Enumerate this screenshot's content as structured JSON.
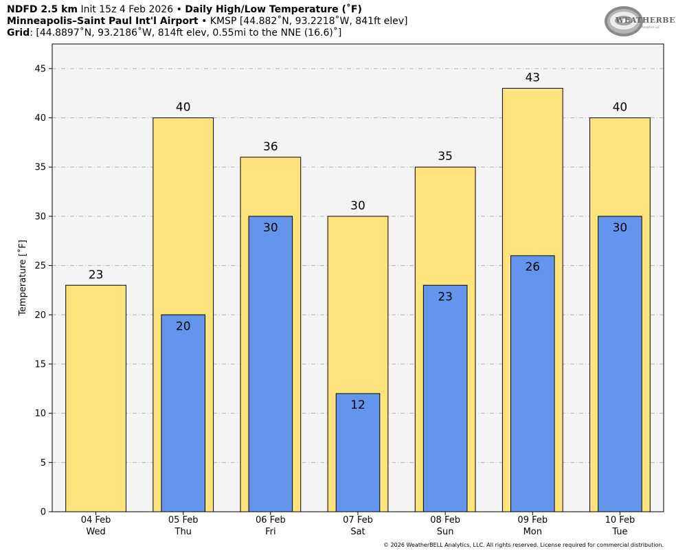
{
  "header": {
    "line1_model": "NDFD 2.5 km",
    "line1_init": "Init 15z 4 Feb 2026",
    "line1_bullet": "•",
    "line1_product": "Daily High/Low Temperature (˚F)",
    "line2_station": "Minneapolis–Saint Paul Int'l Airport",
    "line2_bullet": "•",
    "line2_details": "KMSP [44.882˚N, 93.2218˚W, 841ft elev]",
    "line3_label": "Grid",
    "line3_details": ": [44.8897˚N, 93.2186˚W, 814ft elev, 0.55mi to the NNE (16.6)˚]"
  },
  "logo": {
    "text": "WEATHERBELL",
    "sub": "Analytics LLC"
  },
  "copyright": "© 2026 WeatherBELL Analytics, LLC. All rights reserved. License required for commercial distribution.",
  "colors": {
    "high": "#FFE47E",
    "low": "#6495ED",
    "plot_bg": "#F4F4F4",
    "grid": "#B4B4B4"
  },
  "chart_data": {
    "type": "bar",
    "title": "Daily High/Low Temperature (˚F)",
    "ylabel": "Temperature [˚F]",
    "ylim": [
      0,
      47.5
    ],
    "yticks": [
      0,
      5,
      10,
      15,
      20,
      25,
      30,
      35,
      40,
      45
    ],
    "grid": true,
    "categories": [
      {
        "date": "04 Feb",
        "day": "Wed"
      },
      {
        "date": "05 Feb",
        "day": "Thu"
      },
      {
        "date": "06 Feb",
        "day": "Fri"
      },
      {
        "date": "07 Feb",
        "day": "Sat"
      },
      {
        "date": "08 Feb",
        "day": "Sun"
      },
      {
        "date": "09 Feb",
        "day": "Mon"
      },
      {
        "date": "10 Feb",
        "day": "Tue"
      }
    ],
    "series": [
      {
        "values": [
          23,
          40,
          36,
          30,
          35,
          43,
          40
        ]
      },
      {
        "values": [
          null,
          20,
          30,
          12,
          23,
          26,
          30
        ]
      }
    ]
  }
}
